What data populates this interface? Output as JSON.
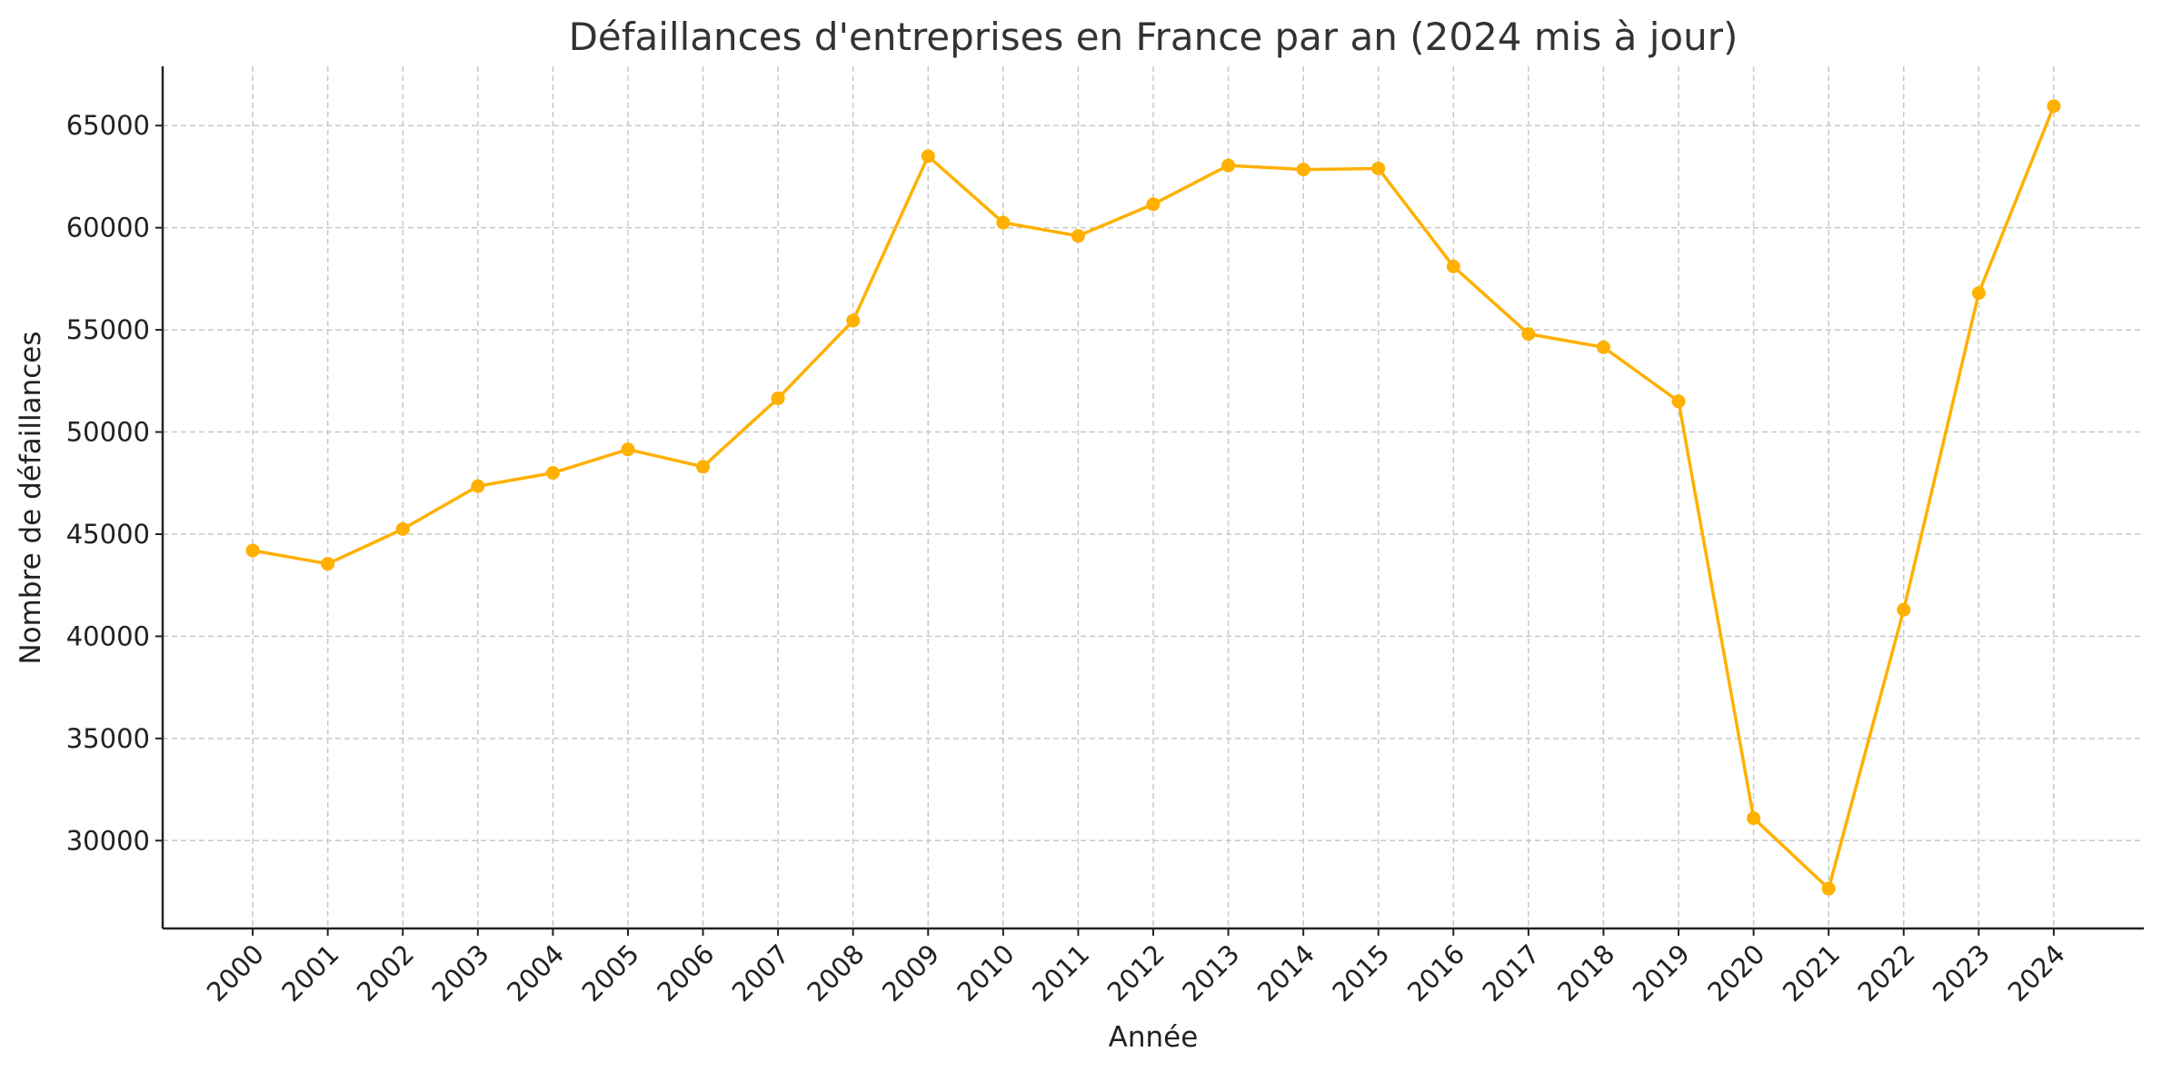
{
  "chart_data": {
    "type": "line",
    "title": "Défaillances d'entreprises en France par an (2024 mis à jour)",
    "xlabel": "Année",
    "ylabel": "Nombre de défaillances",
    "x": [
      2000,
      2001,
      2002,
      2003,
      2004,
      2005,
      2006,
      2007,
      2008,
      2009,
      2010,
      2011,
      2012,
      2013,
      2014,
      2015,
      2016,
      2017,
      2018,
      2019,
      2020,
      2021,
      2022,
      2023,
      2024
    ],
    "x_tick_labels": [
      "2000",
      "2001",
      "2002",
      "2003",
      "2004",
      "2005",
      "2006",
      "2007",
      "2008",
      "2009",
      "2010",
      "2011",
      "2012",
      "2013",
      "2014",
      "2015",
      "2016",
      "2017",
      "2018",
      "2019",
      "2020",
      "2021",
      "2022",
      "2023",
      "2024"
    ],
    "series": [
      {
        "values": [
          44200,
          43550,
          45250,
          47350,
          48000,
          49150,
          48300,
          51650,
          55450,
          63500,
          60250,
          59600,
          61150,
          63050,
          62850,
          62900,
          58100,
          54800,
          54150,
          51500,
          31100,
          27650,
          41300,
          56800,
          65950
        ],
        "color": "#FFB000",
        "marker": "circle"
      }
    ],
    "y_ticks": [
      30000,
      35000,
      40000,
      45000,
      50000,
      55000,
      60000,
      65000
    ],
    "y_tick_labels": [
      "30000",
      "35000",
      "40000",
      "45000",
      "50000",
      "55000",
      "60000",
      "65000"
    ],
    "xlim": [
      1998.8,
      2025.2
    ],
    "ylim": [
      25700,
      67900
    ],
    "grid": true,
    "grid_style": "dashed",
    "legend": "none"
  }
}
